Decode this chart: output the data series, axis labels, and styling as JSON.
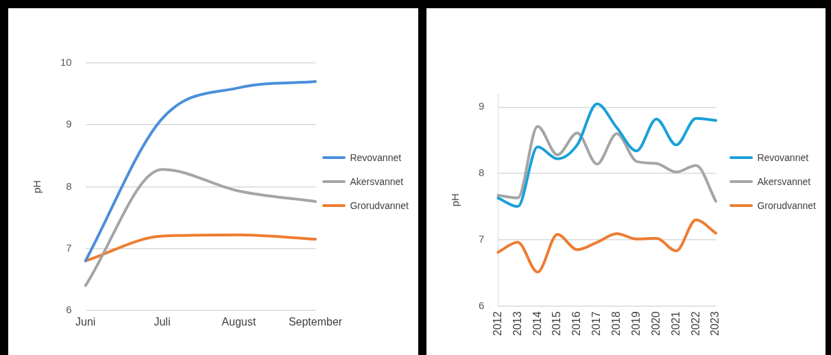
{
  "chart_data": [
    {
      "type": "line",
      "ylabel": "pH",
      "categories": [
        "Juni",
        "Juli",
        "August",
        "September"
      ],
      "ylim": [
        6,
        10
      ],
      "yticks": [
        6,
        7,
        8,
        9,
        10
      ],
      "grid": "y",
      "legend": "right",
      "marker": "none",
      "series": [
        {
          "name": "Revovannet",
          "color": "#4a8fdb",
          "values": [
            6.8,
            9.1,
            9.6,
            9.7
          ]
        },
        {
          "name": "Akersvannet",
          "color": "#a5a5a5",
          "values": [
            6.4,
            8.28,
            7.93,
            7.76
          ]
        },
        {
          "name": "Grorudvannet",
          "color": "#ed7d31",
          "values": [
            6.8,
            7.2,
            7.22,
            7.15
          ]
        }
      ]
    },
    {
      "type": "line",
      "ylabel": "pH",
      "categories": [
        "2012",
        "2013",
        "2014",
        "2015",
        "2016",
        "2017",
        "2018",
        "2019",
        "2020",
        "2021",
        "2022",
        "2023"
      ],
      "ylim": [
        6,
        9.2
      ],
      "yticks": [
        6,
        7,
        8,
        9
      ],
      "grid": "y",
      "legend": "right",
      "marker": "none",
      "series": [
        {
          "name": "Revovannet",
          "color": "#1aa0d8",
          "values": [
            7.63,
            7.5,
            8.4,
            8.22,
            8.43,
            9.05,
            8.69,
            8.34,
            8.82,
            8.43,
            8.83,
            8.8
          ]
        },
        {
          "name": "Akersvannet",
          "color": "#a5a5a5",
          "values": [
            7.67,
            7.63,
            8.71,
            8.28,
            8.61,
            8.14,
            8.6,
            8.18,
            8.15,
            8.02,
            8.12,
            7.58
          ]
        },
        {
          "name": "Grorudvannet",
          "color": "#ed7d31",
          "values": [
            6.81,
            6.96,
            6.51,
            7.08,
            6.85,
            6.96,
            7.09,
            7.01,
            7.02,
            6.83,
            7.3,
            7.1
          ]
        }
      ]
    }
  ]
}
